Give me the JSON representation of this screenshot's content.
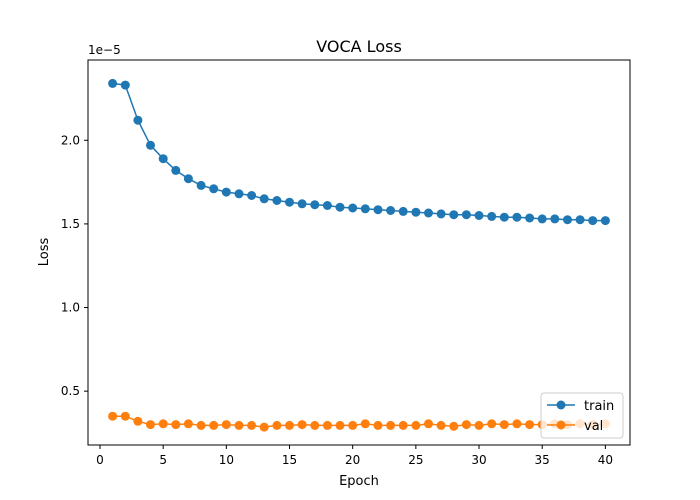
{
  "chart_data": {
    "type": "line",
    "title": "VOCA Loss",
    "xlabel": "Epoch",
    "ylabel": "Loss",
    "y_scale_label": "1e−5",
    "xlim": [
      -0.95,
      41.95
    ],
    "ylim": [
      0.178,
      2.48
    ],
    "x_ticks": [
      0,
      5,
      10,
      15,
      20,
      25,
      30,
      35,
      40
    ],
    "x_tick_labels": [
      "0",
      "5",
      "10",
      "15",
      "20",
      "25",
      "30",
      "35",
      "40"
    ],
    "y_ticks": [
      0.5,
      1.0,
      1.5,
      2.0
    ],
    "y_tick_labels": [
      "0.5",
      "1.0",
      "1.5",
      "2.0"
    ],
    "grid": false,
    "legend_position": "bottom-right",
    "series": [
      {
        "name": "train",
        "color": "#1f77b4",
        "marker": "circle",
        "x": [
          1,
          2,
          3,
          4,
          5,
          6,
          7,
          8,
          9,
          10,
          11,
          12,
          13,
          14,
          15,
          16,
          17,
          18,
          19,
          20,
          21,
          22,
          23,
          24,
          25,
          26,
          27,
          28,
          29,
          30,
          31,
          32,
          33,
          34,
          35,
          36,
          37,
          38,
          39,
          40
        ],
        "values": [
          2.34,
          2.33,
          2.12,
          1.97,
          1.89,
          1.82,
          1.77,
          1.73,
          1.71,
          1.69,
          1.68,
          1.67,
          1.65,
          1.64,
          1.63,
          1.62,
          1.615,
          1.61,
          1.6,
          1.595,
          1.59,
          1.585,
          1.58,
          1.575,
          1.57,
          1.565,
          1.56,
          1.555,
          1.555,
          1.55,
          1.545,
          1.54,
          1.54,
          1.535,
          1.53,
          1.53,
          1.525,
          1.525,
          1.52,
          1.52
        ]
      },
      {
        "name": "val",
        "color": "#ff7f0e",
        "marker": "circle",
        "x": [
          1,
          2,
          3,
          4,
          5,
          6,
          7,
          8,
          9,
          10,
          11,
          12,
          13,
          14,
          15,
          16,
          17,
          18,
          19,
          20,
          21,
          22,
          23,
          24,
          25,
          26,
          27,
          28,
          29,
          30,
          31,
          32,
          33,
          34,
          35,
          36,
          37,
          38,
          39,
          40
        ],
        "values": [
          0.35,
          0.35,
          0.32,
          0.3,
          0.305,
          0.3,
          0.305,
          0.295,
          0.295,
          0.3,
          0.295,
          0.295,
          0.285,
          0.295,
          0.295,
          0.3,
          0.295,
          0.295,
          0.295,
          0.295,
          0.305,
          0.295,
          0.295,
          0.295,
          0.295,
          0.305,
          0.295,
          0.29,
          0.3,
          0.295,
          0.305,
          0.3,
          0.305,
          0.3,
          0.3,
          0.305,
          0.3,
          0.305,
          0.3,
          0.305
        ]
      }
    ]
  }
}
